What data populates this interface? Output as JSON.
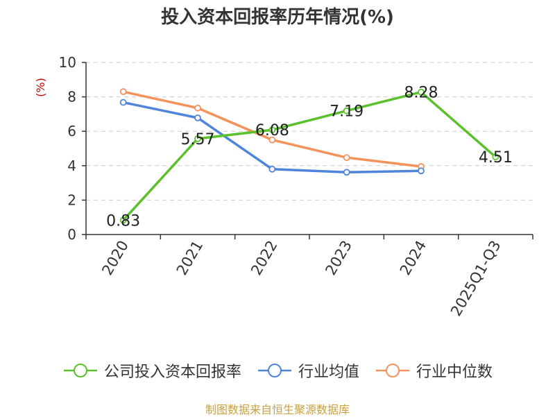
{
  "title": "投入资本回报率历年情况(%)",
  "source": "制图数据来自恒生聚源数据库",
  "chart_data": {
    "type": "line",
    "categories": [
      "2020",
      "2021",
      "2022",
      "2023",
      "2024",
      "2025Q1-Q3"
    ],
    "ylabel": "(%)",
    "ylim": [
      0,
      10
    ],
    "yticks": [
      0,
      2,
      4,
      6,
      8,
      10
    ],
    "grid": true,
    "legend_position": "bottom",
    "series": [
      {
        "name": "公司投入资本回报率",
        "color": "#5ac02c",
        "values": [
          0.83,
          5.57,
          6.08,
          7.19,
          8.28,
          4.51
        ],
        "show_labels": true
      },
      {
        "name": "行业均值",
        "color": "#4f84dc",
        "values": [
          7.68,
          6.78,
          3.8,
          3.62,
          3.7,
          null
        ],
        "show_labels": false
      },
      {
        "name": "行业中位数",
        "color": "#f5915a",
        "values": [
          8.3,
          7.35,
          5.5,
          4.47,
          3.95,
          null
        ],
        "show_labels": false
      }
    ]
  }
}
